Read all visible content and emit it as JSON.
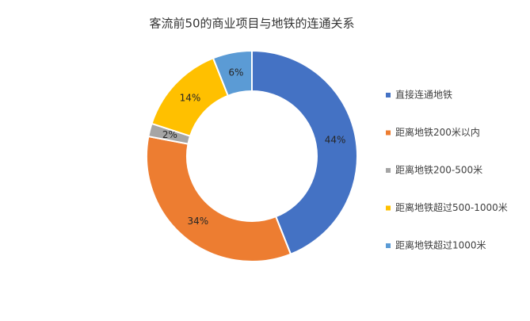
{
  "chart_data": {
    "type": "donut",
    "title": "客流前50的商业项目与地铁的连通关系",
    "categories": [
      "直接连通地铁",
      "距离地铁200米以内",
      "距离地铁200-500米",
      "距离地铁超过500-1000米",
      "距离地铁超过1000米"
    ],
    "values": [
      44,
      34,
      2,
      14,
      6
    ],
    "value_labels": [
      "44%",
      "34%",
      "2%",
      "14%",
      "6%"
    ],
    "colors": [
      "#4472c4",
      "#ed7d31",
      "#a5a5a5",
      "#ffc000",
      "#5b9bd5"
    ],
    "legend": "right"
  }
}
